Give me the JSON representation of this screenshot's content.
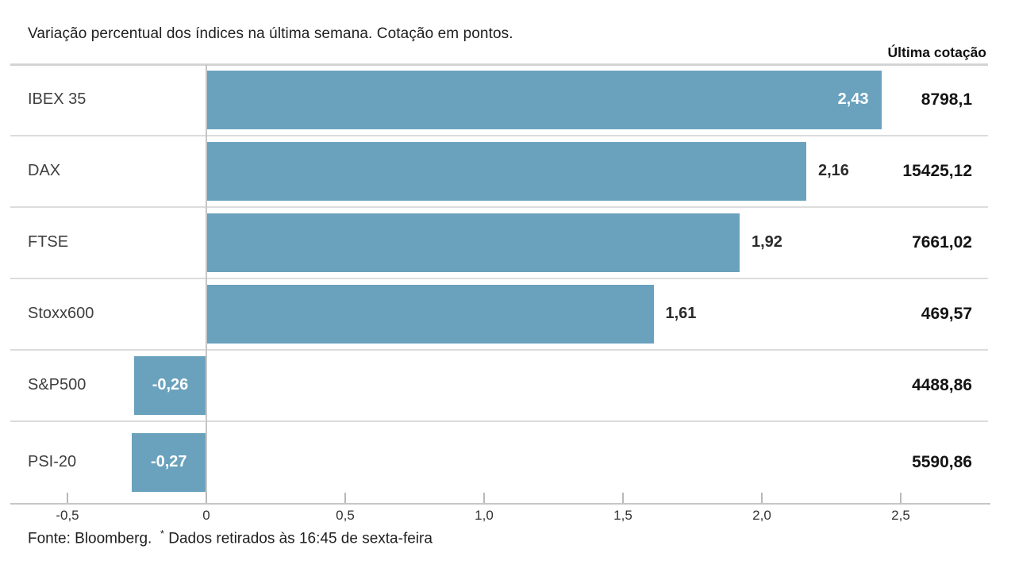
{
  "title": "Variação percentual dos índices na última semana. Cotação em pontos.",
  "column_header": "Última cotação",
  "footer": {
    "source": "Fonte: Bloomberg.",
    "asterisk": "*",
    "note": " Dados retirados às 16:45 de sexta-feira"
  },
  "colors": {
    "bar": "#6aa2be",
    "separator": "#dcdcdc",
    "axis_line": "#c6c6c6",
    "value_inside": "#ffffff",
    "value_outside": "#2b2b2b",
    "text": "#1f1f1f"
  },
  "chart_data": {
    "type": "bar",
    "orientation": "horizontal",
    "title": "Variação percentual dos índices na última semana. Cotação em pontos.",
    "categories": [
      "IBEX 35",
      "DAX",
      "FTSE",
      "Stoxx600",
      "S&P500",
      "PSI-20"
    ],
    "values": [
      2.43,
      2.16,
      1.92,
      1.61,
      -0.26,
      -0.27
    ],
    "value_labels": [
      "2,43",
      "2,16",
      "1,92",
      "1,61",
      "-0,26",
      "-0,27"
    ],
    "last_quotation_header": "Última cotação",
    "last_quotations": [
      "8798,1",
      "15425,12",
      "7661,02",
      "469,57",
      "4488,86",
      "5590,86"
    ],
    "xlim": [
      -0.71,
      2.81
    ],
    "x_ticks": [
      -0.5,
      0,
      0.5,
      1.0,
      1.5,
      2.0,
      2.5
    ],
    "x_tick_labels": [
      "-0,5",
      "0",
      "0,5",
      "1,0",
      "1,5",
      "2,0",
      "2,5"
    ],
    "grid": false,
    "legend": false,
    "source_note": "Fonte: Bloomberg. * Dados retirados às 16:45 de sexta-feira"
  }
}
